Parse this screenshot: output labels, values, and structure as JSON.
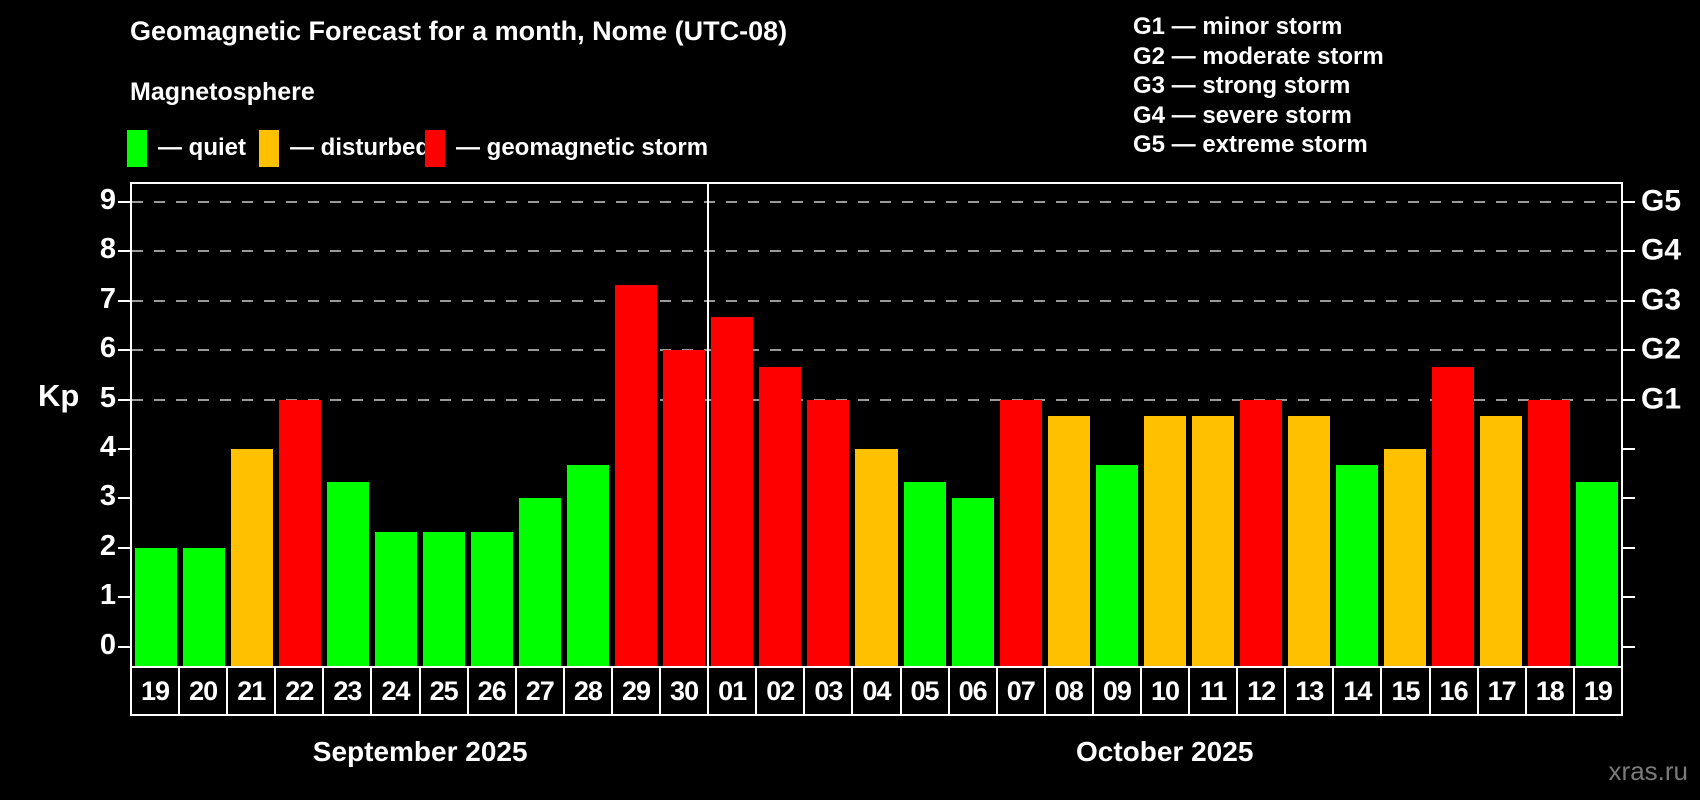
{
  "title": "Geomagnetic Forecast for a month, Nome (UTC-08)",
  "subtitle": "Magnetosphere",
  "watermark": "xras.ru",
  "colors": {
    "quiet": "#00ff00",
    "disturbed": "#ffc000",
    "storm": "#ff0000",
    "axis": "#ffffff",
    "grid": "#999999",
    "text": "#ffffff",
    "watermark": "#7a7a7a",
    "background": "#000000"
  },
  "legend": {
    "items": [
      {
        "key": "quiet",
        "label": "— quiet"
      },
      {
        "key": "disturbed",
        "label": "— disturbed"
      },
      {
        "key": "storm",
        "label": "— geomagnetic storm"
      }
    ]
  },
  "g_legend": [
    "G1 — minor storm",
    "G2 — moderate storm",
    "G3 — strong storm",
    "G4 — severe storm",
    "G5 — extreme storm"
  ],
  "chart_data": {
    "type": "bar",
    "title": "Geomagnetic Forecast for a month, Nome (UTC-08)",
    "ylabel": "Kp",
    "ylim": [
      0,
      9
    ],
    "yticks": [
      0,
      1,
      2,
      3,
      4,
      5,
      6,
      7,
      8,
      9
    ],
    "gridlines_at": [
      5,
      6,
      7,
      8,
      9
    ],
    "grid": "horizontal dashed at storm levels only",
    "legend_position": "top-left",
    "right_axis": [
      {
        "label": "G1",
        "value": 5
      },
      {
        "label": "G2",
        "value": 6
      },
      {
        "label": "G3",
        "value": 7
      },
      {
        "label": "G4",
        "value": 8
      },
      {
        "label": "G5",
        "value": 9
      }
    ],
    "groups": [
      {
        "label": "September 2025",
        "days": 12
      },
      {
        "label": "October 2025",
        "days": 19
      }
    ],
    "bars": [
      {
        "date": "19",
        "kp": 2.0,
        "level": "quiet"
      },
      {
        "date": "20",
        "kp": 2.0,
        "level": "quiet"
      },
      {
        "date": "21",
        "kp": 4.0,
        "level": "disturbed"
      },
      {
        "date": "22",
        "kp": 5.0,
        "level": "storm"
      },
      {
        "date": "23",
        "kp": 3.33,
        "level": "quiet"
      },
      {
        "date": "24",
        "kp": 2.33,
        "level": "quiet"
      },
      {
        "date": "25",
        "kp": 2.33,
        "level": "quiet"
      },
      {
        "date": "26",
        "kp": 2.33,
        "level": "quiet"
      },
      {
        "date": "27",
        "kp": 3.0,
        "level": "quiet"
      },
      {
        "date": "28",
        "kp": 3.67,
        "level": "quiet"
      },
      {
        "date": "29",
        "kp": 7.33,
        "level": "storm"
      },
      {
        "date": "30",
        "kp": 6.0,
        "level": "storm"
      },
      {
        "date": "01",
        "kp": 6.67,
        "level": "storm"
      },
      {
        "date": "02",
        "kp": 5.67,
        "level": "storm"
      },
      {
        "date": "03",
        "kp": 5.0,
        "level": "storm"
      },
      {
        "date": "04",
        "kp": 4.0,
        "level": "disturbed"
      },
      {
        "date": "05",
        "kp": 3.33,
        "level": "quiet"
      },
      {
        "date": "06",
        "kp": 3.0,
        "level": "quiet"
      },
      {
        "date": "07",
        "kp": 5.0,
        "level": "storm"
      },
      {
        "date": "08",
        "kp": 4.67,
        "level": "disturbed"
      },
      {
        "date": "09",
        "kp": 3.67,
        "level": "quiet"
      },
      {
        "date": "10",
        "kp": 4.67,
        "level": "disturbed"
      },
      {
        "date": "11",
        "kp": 4.67,
        "level": "disturbed"
      },
      {
        "date": "12",
        "kp": 5.0,
        "level": "storm"
      },
      {
        "date": "13",
        "kp": 4.67,
        "level": "disturbed"
      },
      {
        "date": "14",
        "kp": 3.67,
        "level": "quiet"
      },
      {
        "date": "15",
        "kp": 4.0,
        "level": "disturbed"
      },
      {
        "date": "16",
        "kp": 5.67,
        "level": "storm"
      },
      {
        "date": "17",
        "kp": 4.67,
        "level": "disturbed"
      },
      {
        "date": "18",
        "kp": 5.0,
        "level": "storm"
      },
      {
        "date": "19",
        "kp": 3.33,
        "level": "quiet"
      }
    ]
  }
}
